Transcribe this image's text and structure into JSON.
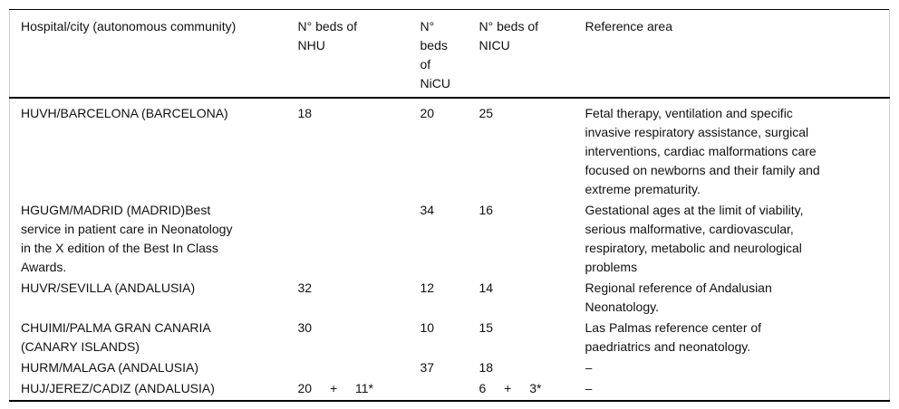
{
  "table": {
    "columns": [
      {
        "label": "Hospital/city (autonomous community)"
      },
      {
        "label": "N° beds of\nNHU"
      },
      {
        "label": "N°\nbeds\nof\nNiCU"
      },
      {
        "label": "N° beds of\nNICU"
      },
      {
        "label": "Reference area"
      }
    ],
    "rows": [
      {
        "hospital": "HUVH/BARCELONA (BARCELONA)",
        "beds_nhu": "18",
        "beds_nicu_mixed": "20",
        "beds_nicu": "25",
        "reference": "Fetal therapy, ventilation and specific\ninvasive respiratory assistance, surgical\ninterventions, cardiac malformations care\nfocused on newborns and their family and\nextreme prematurity."
      },
      {
        "hospital": "HGUGM/MADRID (MADRID)Best\nservice in patient care in Neonatology\nin the X edition of the Best In Class\nAwards.",
        "beds_nhu": "",
        "beds_nicu_mixed": "34",
        "beds_nicu": "16",
        "reference": "Gestational ages at the limit of viability,\nserious malformative, cardiovascular,\nrespiratory, metabolic and neurological\nproblems"
      },
      {
        "hospital": "HUVR/SEVILLA (ANDALUSIA)",
        "beds_nhu": "32",
        "beds_nicu_mixed": "12",
        "beds_nicu": "14",
        "reference": "Regional reference of Andalusian\nNeonatology."
      },
      {
        "hospital": "CHUIMI/PALMA GRAN CANARIA\n(CANARY ISLANDS)",
        "beds_nhu": "30",
        "beds_nicu_mixed": "10",
        "beds_nicu": "15",
        "reference": "Las Palmas reference center of\npaedriatrics and neonatology."
      },
      {
        "hospital": "HURM/MALAGA (ANDALUSIA)",
        "beds_nhu": "",
        "beds_nicu_mixed": "37",
        "beds_nicu": "18",
        "reference": "–"
      },
      {
        "hospital": "HUJ/JEREZ/CADIZ (ANDALUSIA)",
        "beds_nhu": "20 + 11*",
        "beds_nicu_mixed": "",
        "beds_nicu": "6 + 3*",
        "reference": "–"
      }
    ]
  }
}
